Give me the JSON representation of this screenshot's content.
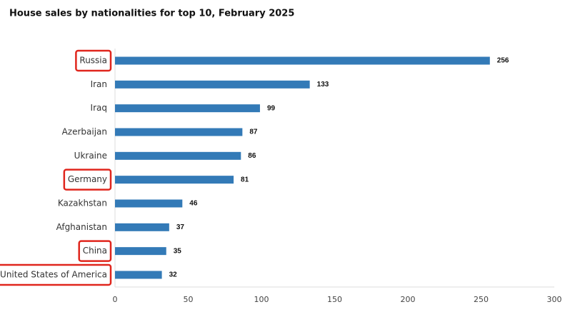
{
  "chart_data": {
    "type": "bar",
    "orientation": "horizontal",
    "title": "House sales by nationalities for top 10, February 2025",
    "categories": [
      "Russia",
      "Iran",
      "Iraq",
      "Azerbaijan",
      "Ukraine",
      "Germany",
      "Kazakhstan",
      "Afghanistan",
      "China",
      "United States of America"
    ],
    "values": [
      256,
      133,
      99,
      87,
      86,
      81,
      46,
      37,
      35,
      32
    ],
    "highlighted": [
      true,
      false,
      false,
      false,
      false,
      true,
      false,
      false,
      true,
      true
    ],
    "color": "#337ab7",
    "highlight_color": "#e0261d",
    "xlim": [
      0,
      300
    ],
    "xticks": [
      0,
      50,
      100,
      150,
      200,
      250,
      300
    ],
    "grid": false
  }
}
